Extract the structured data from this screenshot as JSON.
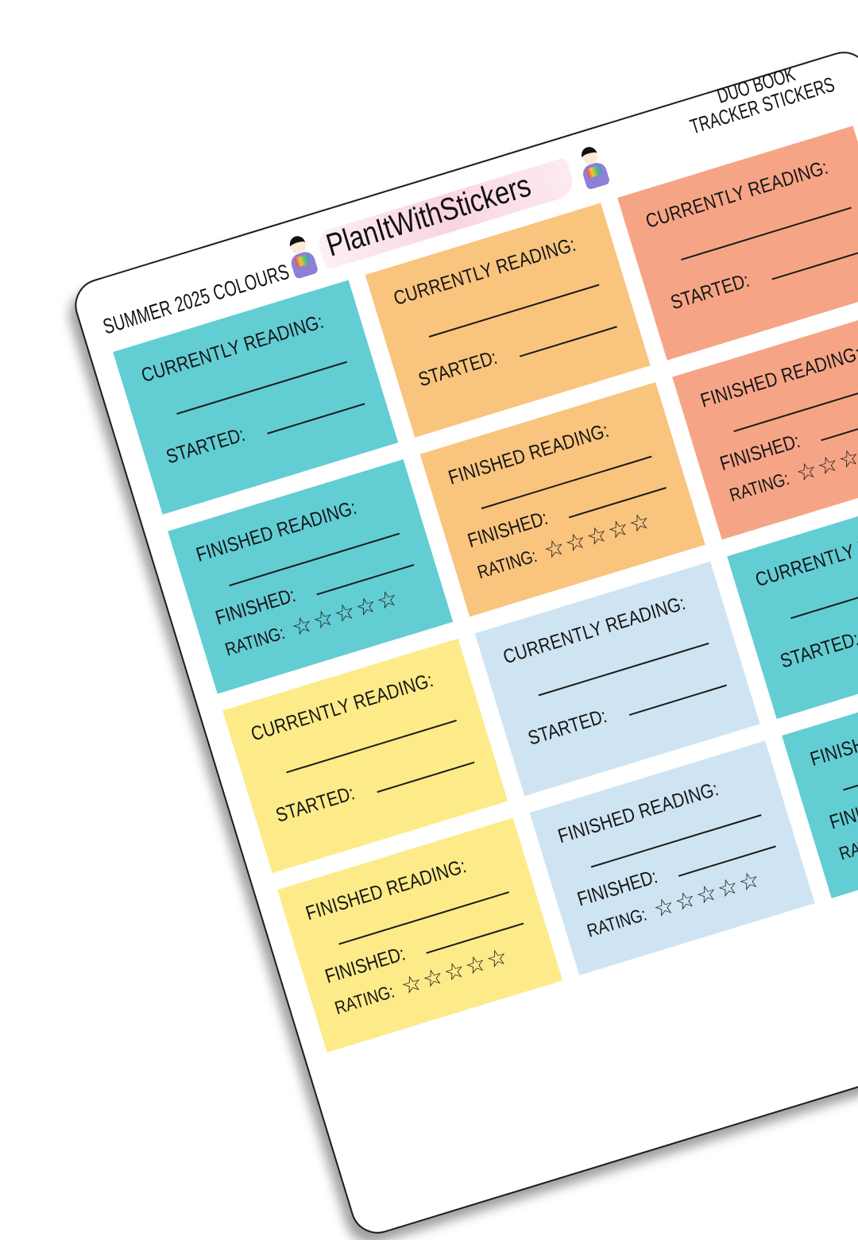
{
  "sheet": {
    "collection": "SUMMER 2025 COLOURS",
    "brand": "PlanItWithStickers",
    "product_line1": "DUO BOOK",
    "product_line2": "TRACKER STICKERS"
  },
  "labels": {
    "currently": "CURRENTLY READING:",
    "finished_title": "FINISHED READING:",
    "started": "STARTED:",
    "finished": "FINISHED:",
    "rating": "RATING:"
  },
  "rating_stars": 5,
  "colors": {
    "teal": "#63CDD4",
    "orange": "#F9C47E",
    "salmon": "#F5A586",
    "yellow": "#FCEB88",
    "blue": "#CFE4F2",
    "brush_pink": "#F8CDDC"
  },
  "cards": [
    {
      "type": "currently",
      "color": "#63CDD4",
      "col": 0,
      "row": 0
    },
    {
      "type": "currently",
      "color": "#F9C47E",
      "col": 1,
      "row": 0
    },
    {
      "type": "currently",
      "color": "#F5A586",
      "col": 2,
      "row": 0
    },
    {
      "type": "finished",
      "color": "#63CDD4",
      "col": 0,
      "row": 1
    },
    {
      "type": "finished",
      "color": "#F9C47E",
      "col": 1,
      "row": 1
    },
    {
      "type": "finished",
      "color": "#F5A586",
      "col": 2,
      "row": 1
    },
    {
      "type": "currently",
      "color": "#FCEB88",
      "col": 0,
      "row": 2
    },
    {
      "type": "currently",
      "color": "#CFE4F2",
      "col": 1,
      "row": 2
    },
    {
      "type": "currently",
      "color": "#63CDD4",
      "col": 2,
      "row": 2
    },
    {
      "type": "finished",
      "color": "#FCEB88",
      "col": 0,
      "row": 3
    },
    {
      "type": "finished",
      "color": "#CFE4F2",
      "col": 1,
      "row": 3
    },
    {
      "type": "finished",
      "color": "#63CDD4",
      "col": 2,
      "row": 3
    }
  ]
}
